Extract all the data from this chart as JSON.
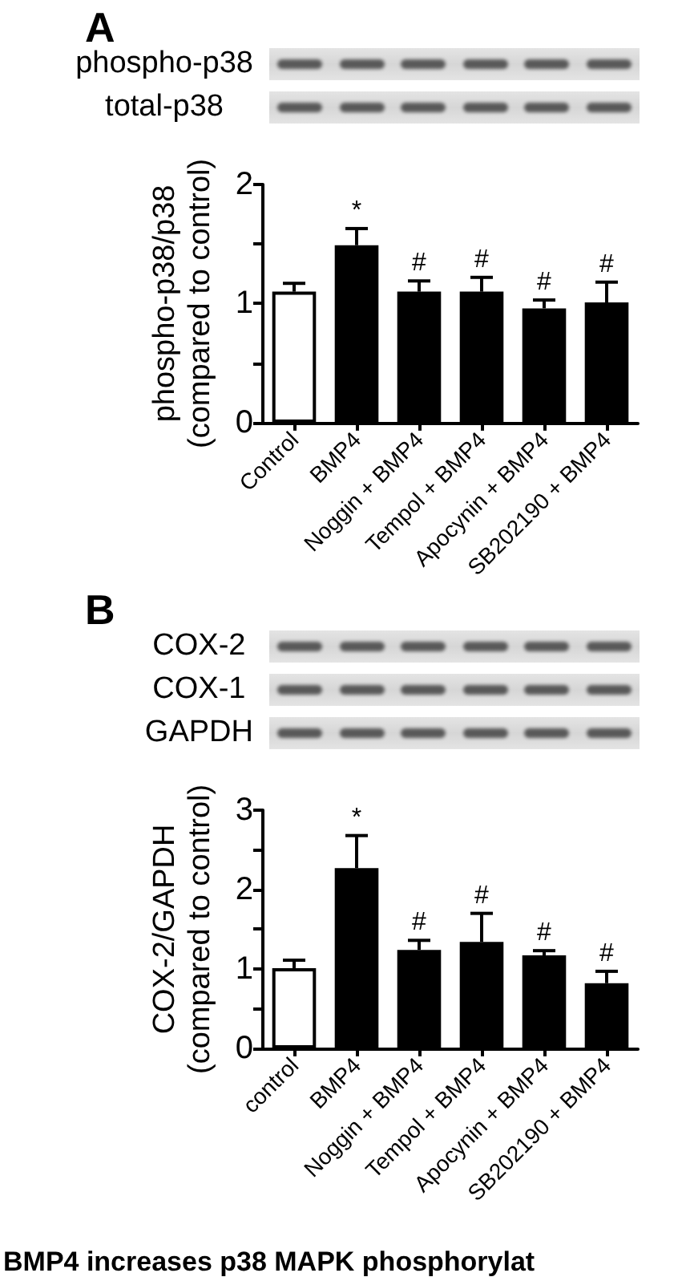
{
  "chart_data": [
    {
      "type": "bar",
      "title": "A",
      "ylabel": "phospho-p38/p38\n(compared to control)",
      "categories": [
        "Control",
        "BMP4",
        "Noggin + BMP4",
        "Tempol + BMP4",
        "Apocynin + BMP4",
        "SB202190 + BMP4"
      ],
      "values": [
        1.1,
        1.49,
        1.1,
        1.1,
        0.96,
        1.01
      ],
      "colors": [
        "#ffffff",
        "#000000",
        "#000000",
        "#000000",
        "#000000",
        "#000000"
      ],
      "errors": [
        [
          1.1,
          1.17
        ],
        [
          1.49,
          1.63
        ],
        [
          1.1,
          1.19
        ],
        [
          1.1,
          1.22
        ],
        [
          0.96,
          1.03
        ],
        [
          1.01,
          1.18
        ]
      ],
      "ylim": [
        0,
        2
      ],
      "yticks": [
        0,
        {
          "value": 0.5,
          "label": null
        },
        1,
        {
          "value": 1.5,
          "label": null
        },
        2
      ],
      "annotations": [
        "phospho-p38",
        "total-p38",
        {
          "text": "*",
          "x": "BMP4",
          "y": 1.63
        },
        {
          "text": "#",
          "x": "Noggin + BMP4",
          "y": 1.19
        },
        {
          "text": "#",
          "x": "Tempol + BMP4",
          "y": 1.22
        },
        {
          "text": "#",
          "x": "Apocynin + BMP4",
          "y": 1.03
        },
        {
          "text": "#",
          "x": "SB202190 + BMP4",
          "y": 1.18
        }
      ]
    },
    {
      "type": "bar",
      "title": "B",
      "ylabel": "COX-2/GAPDH\n(compared to control)",
      "categories": [
        "control",
        "BMP4",
        "Noggin + BMP4",
        "Tempol + BMP4",
        "Apocynin + BMP4",
        "SB202190 + BMP4"
      ],
      "values": [
        1.01,
        2.27,
        1.24,
        1.34,
        1.17,
        0.82
      ],
      "colors": [
        "#ffffff",
        "#000000",
        "#000000",
        "#000000",
        "#000000",
        "#000000"
      ],
      "errors": [
        [
          1.01,
          1.11
        ],
        [
          2.27,
          2.68
        ],
        [
          1.24,
          1.36
        ],
        [
          1.34,
          1.7
        ],
        [
          1.17,
          1.23
        ],
        [
          0.82,
          0.97
        ]
      ],
      "ylim": [
        0,
        3
      ],
      "yticks": [
        0,
        {
          "value": 0.5,
          "label": null
        },
        1,
        {
          "value": 1.5,
          "label": null
        },
        2,
        {
          "value": 2.5,
          "label": null
        },
        3
      ],
      "annotations": [
        "COX-2",
        "COX-1",
        "GAPDH",
        {
          "text": "*",
          "x": "BMP4",
          "y": 2.68
        },
        {
          "text": "#",
          "x": "Noggin + BMP4",
          "y": 1.36
        },
        {
          "text": "#",
          "x": "Tempol + BMP4",
          "y": 1.7
        },
        {
          "text": "#",
          "x": "Apocynin + BMP4",
          "y": 1.23
        },
        {
          "text": "#",
          "x": "SB202190 + BMP4",
          "y": 0.97
        }
      ]
    },
    {
      "type": "other",
      "annotations": [
        "BMP4 increases p38 MAPK phosphorylat"
      ]
    }
  ]
}
